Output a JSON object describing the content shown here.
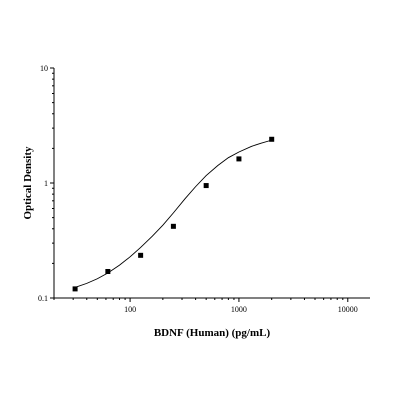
{
  "chart_data": {
    "type": "scatter",
    "x_scale": "log",
    "y_scale": "log",
    "xlabel": "BDNF (Human) (pg/mL)",
    "ylabel": "Optical Density",
    "xlim": [
      20,
      16000
    ],
    "ylim": [
      0.1,
      10
    ],
    "x_ticks": [
      {
        "value": 100,
        "label": "100"
      },
      {
        "value": 1000,
        "label": "1000"
      },
      {
        "value": 10000,
        "label": "10000"
      }
    ],
    "y_ticks": [
      {
        "value": 0.1,
        "label": "0.1"
      },
      {
        "value": 1,
        "label": "1"
      },
      {
        "value": 10,
        "label": "10"
      }
    ],
    "grid": false,
    "series": [
      {
        "marker": "square",
        "x": [
          31.25,
          62.5,
          125,
          250,
          500,
          1000,
          2000
        ],
        "y": [
          0.12,
          0.17,
          0.235,
          0.42,
          0.95,
          1.62,
          2.4
        ]
      }
    ],
    "fit_curve": {
      "x": [
        30,
        40,
        50,
        62.5,
        80,
        100,
        125,
        160,
        200,
        250,
        320,
        400,
        500,
        640,
        800,
        1000,
        1300,
        1600,
        2000
      ],
      "y": [
        0.122,
        0.134,
        0.147,
        0.165,
        0.193,
        0.228,
        0.275,
        0.345,
        0.43,
        0.55,
        0.73,
        0.93,
        1.16,
        1.42,
        1.66,
        1.86,
        2.08,
        2.22,
        2.36
      ]
    },
    "colors": {
      "axis": "#000000",
      "marker": "#000000",
      "curve": "#000000"
    }
  }
}
